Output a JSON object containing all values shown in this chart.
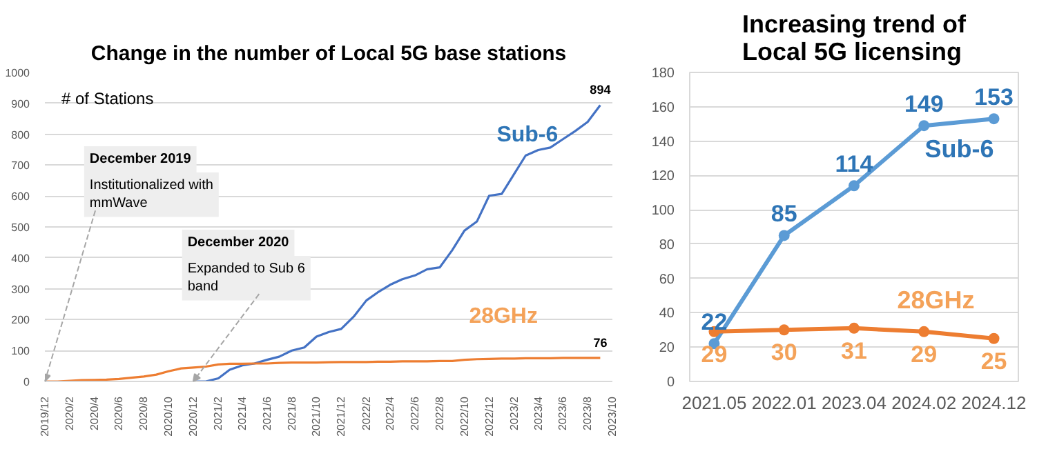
{
  "chart_data": [
    {
      "type": "line",
      "title": "Change in the number of Local 5G base stations",
      "ylabel": "# of Stations",
      "xlim": [
        "2019-12",
        "2023-10"
      ],
      "xticks": [
        {
          "value": "2019-12",
          "label": "2019/12"
        },
        {
          "value": "2020-02",
          "label": "2020/2"
        },
        {
          "value": "2020-04",
          "label": "2020/4"
        },
        {
          "value": "2020-06",
          "label": "2020/6"
        },
        {
          "value": "2020-08",
          "label": "2020/8"
        },
        {
          "value": "2020-10",
          "label": "2020/10"
        },
        {
          "value": "2020-12",
          "label": "2020/12"
        },
        {
          "value": "2021-02",
          "label": "2021/2"
        },
        {
          "value": "2021-04",
          "label": "2021/4"
        },
        {
          "value": "2021-06",
          "label": "2021/6"
        },
        {
          "value": "2021-08",
          "label": "2021/8"
        },
        {
          "value": "2021-10",
          "label": "2021/10"
        },
        {
          "value": "2021-12",
          "label": "2021/12"
        },
        {
          "value": "2022-02",
          "label": "2022/2"
        },
        {
          "value": "2022-04",
          "label": "2022/4"
        },
        {
          "value": "2022-06",
          "label": "2022/6"
        },
        {
          "value": "2022-08",
          "label": "2022/8"
        },
        {
          "value": "2022-10",
          "label": "2022/10"
        },
        {
          "value": "2022-12",
          "label": "2022/12"
        },
        {
          "value": "2023-02",
          "label": "2023/2"
        },
        {
          "value": "2023-04",
          "label": "2023/4"
        },
        {
          "value": "2023-06",
          "label": "2023/6"
        },
        {
          "value": "2023-08",
          "label": "2023/8"
        },
        {
          "value": "2023-10",
          "label": "2023/10"
        }
      ],
      "ylim": [
        0,
        1000
      ],
      "yticks": [
        0,
        100,
        200,
        300,
        400,
        500,
        600,
        700,
        800,
        900,
        1000
      ],
      "grid": "y",
      "legend": false,
      "series": [
        {
          "name": "Sub-6",
          "color": "#4472c4",
          "x": [
            "2020-12",
            "2021-01",
            "2021-02",
            "2021-03",
            "2021-04",
            "2021-05",
            "2021-06",
            "2021-07",
            "2021-08",
            "2021-09",
            "2021-10",
            "2021-11",
            "2021-12",
            "2022-01",
            "2022-02",
            "2022-03",
            "2022-04",
            "2022-05",
            "2022-06",
            "2022-07",
            "2022-08",
            "2022-09",
            "2022-10",
            "2022-11",
            "2022-12",
            "2023-01",
            "2023-02",
            "2023-03",
            "2023-04",
            "2023-05",
            "2023-06",
            "2023-07",
            "2023-08",
            "2023-09"
          ],
          "values": [
            0,
            0,
            10,
            38,
            52,
            58,
            70,
            80,
            100,
            110,
            145,
            160,
            170,
            210,
            262,
            288,
            313,
            331,
            343,
            363,
            369,
            425,
            488,
            518,
            601,
            607,
            672,
            731,
            749,
            757,
            784,
            810,
            840,
            894
          ]
        },
        {
          "name": "28GHz",
          "color": "#ed7d31",
          "x": [
            "2019-12",
            "2020-01",
            "2020-02",
            "2020-03",
            "2020-04",
            "2020-05",
            "2020-06",
            "2020-07",
            "2020-08",
            "2020-09",
            "2020-10",
            "2020-11",
            "2020-12",
            "2021-01",
            "2021-02",
            "2021-03",
            "2021-04",
            "2021-05",
            "2021-06",
            "2021-07",
            "2021-08",
            "2021-09",
            "2021-10",
            "2021-11",
            "2021-12",
            "2022-01",
            "2022-02",
            "2022-03",
            "2022-04",
            "2022-05",
            "2022-06",
            "2022-07",
            "2022-08",
            "2022-09",
            "2022-10",
            "2022-11",
            "2022-12",
            "2023-01",
            "2023-02",
            "2023-03",
            "2023-04",
            "2023-05",
            "2023-06",
            "2023-07",
            "2023-08",
            "2023-09"
          ],
          "values": [
            0,
            0,
            2,
            4,
            5,
            6,
            8,
            12,
            16,
            22,
            33,
            42,
            45,
            48,
            55,
            57,
            57,
            58,
            58,
            60,
            61,
            61,
            61,
            62,
            63,
            63,
            63,
            64,
            64,
            65,
            65,
            65,
            66,
            66,
            70,
            72,
            73,
            74,
            74,
            75,
            75,
            75,
            76,
            76,
            76,
            76
          ]
        }
      ],
      "annotations": [
        {
          "text": "December 2019\nInstitutionalized with\nmmWave",
          "x": "2019-12",
          "y": 0
        },
        {
          "text": "December 2020\nExpanded to Sub 6\nband",
          "x": "2020-12",
          "y": 0
        },
        {
          "text": "894",
          "x": "2023-09",
          "y": 894
        },
        {
          "text": "76",
          "x": "2023-09",
          "y": 76
        }
      ]
    },
    {
      "type": "line",
      "title": "Increasing trend of\nLocal 5G licensing",
      "categories": [
        "2021.05",
        "2022.01",
        "2023.04",
        "2024.02",
        "2024.12"
      ],
      "ylim": [
        0,
        180
      ],
      "yticks": [
        0,
        20,
        40,
        60,
        80,
        100,
        120,
        140,
        160,
        180
      ],
      "grid": "y",
      "legend": false,
      "marker": "circle",
      "data_labels": true,
      "series": [
        {
          "name": "Sub-6",
          "color": "#5b9bd5",
          "values": [
            22,
            85,
            114,
            149,
            153
          ]
        },
        {
          "name": "28GHz",
          "color": "#ed7d31",
          "values": [
            29,
            30,
            31,
            29,
            25
          ]
        }
      ]
    }
  ]
}
